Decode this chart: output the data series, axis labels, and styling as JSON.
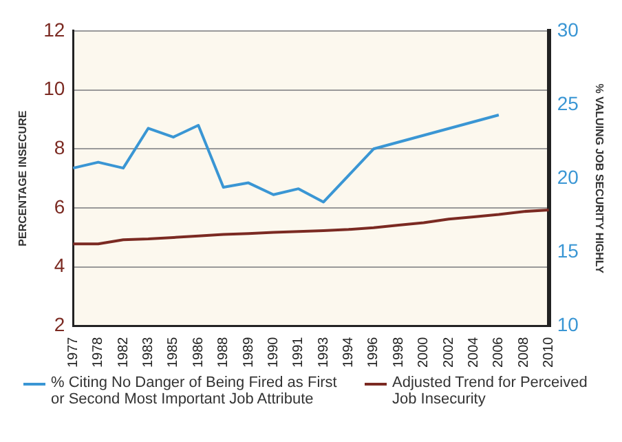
{
  "chart_data": {
    "type": "line",
    "ylabel": "PERCENTAGE INSECURE",
    "y2label": "% VALUING JOB SECURITY HIGHLY",
    "categories": [
      "1977",
      "1978",
      "1982",
      "1983",
      "1985",
      "1986",
      "1988",
      "1989",
      "1990",
      "1991",
      "1993",
      "1994",
      "1996",
      "1998",
      "2000",
      "2002",
      "2004",
      "2006",
      "2008",
      "2010"
    ],
    "series": [
      {
        "name": "% Citing No Danger of Being Fired as First or Second Most Important Job Attribute",
        "color": "#3a96d4",
        "axis": "y2",
        "values": [
          20.7,
          21.1,
          20.7,
          23.4,
          22.8,
          23.6,
          19.4,
          19.7,
          18.9,
          19.3,
          18.4,
          null,
          22.0,
          null,
          null,
          null,
          null,
          24.3,
          null,
          null
        ]
      },
      {
        "name": "Adjusted Trend for Perceived Job Insecurity",
        "color": "#7b2a22",
        "values": [
          4.78,
          4.78,
          4.92,
          4.95,
          5.0,
          5.05,
          5.1,
          5.13,
          5.17,
          5.2,
          5.23,
          5.27,
          5.33,
          5.42,
          5.5,
          5.62,
          5.7,
          5.78,
          5.88,
          5.93
        ]
      }
    ],
    "ylim": [
      2,
      12
    ],
    "yticks": [
      2,
      4,
      6,
      8,
      10,
      12
    ],
    "y2lim": [
      10,
      30
    ],
    "y2ticks": [
      10,
      15,
      20,
      25,
      30
    ],
    "grid": "y",
    "legend": "bottom",
    "marker": "none",
    "line_style": "solid"
  }
}
